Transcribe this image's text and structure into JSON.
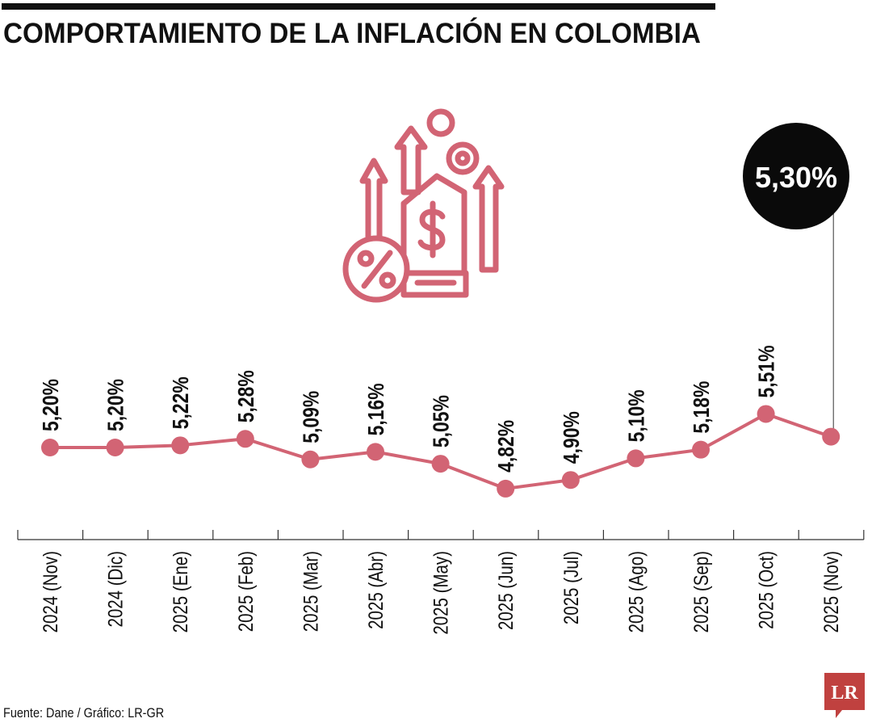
{
  "title": "COMPORTAMIENTO DE LA INFLACIÓN EN COLOMBIA",
  "source": "Fuente: Dane / Gráfico: LR-GR",
  "logo_text": "LR",
  "highlight_label": "5,30%",
  "icon": "inflation-price-tag-icon",
  "colors": {
    "line": "#d26474",
    "text": "#111111",
    "highlight_bg": "#0a0a0a",
    "highlight_text": "#ffffff",
    "logo": "#c0413f"
  },
  "chart_data": {
    "type": "line",
    "title": "COMPORTAMIENTO DE LA INFLACIÓN EN COLOMBIA",
    "categories": [
      "2024 (Nov)",
      "2024 (Dic)",
      "2025 (Ene)",
      "2025 (Feb)",
      "2025 (Mar)",
      "2025 (Abr)",
      "2025 (May)",
      "2025 (Jun)",
      "2025 (Jul)",
      "2025 (Ago)",
      "2025 (Sep)",
      "2025 (Oct)",
      "2025 (Nov)"
    ],
    "values": [
      5.2,
      5.2,
      5.22,
      5.28,
      5.09,
      5.16,
      5.05,
      4.82,
      4.9,
      5.1,
      5.18,
      5.51,
      5.3
    ],
    "labels": [
      "5,20%",
      "5,20%",
      "5,22%",
      "5,28%",
      "5,09%",
      "5,16%",
      "5,05%",
      "4,82%",
      "4,90%",
      "5,10%",
      "5,18%",
      "5,51%",
      "5,30%"
    ],
    "xlabel": "",
    "ylabel": "",
    "grid": false,
    "legend": "none"
  }
}
